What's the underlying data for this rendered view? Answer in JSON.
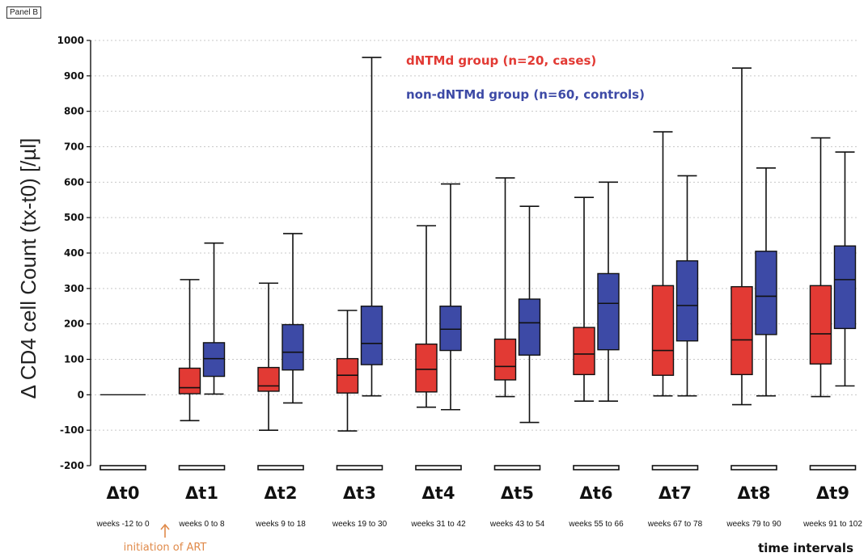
{
  "panel_label": "Panel B",
  "colors": {
    "cases": "#e23a34",
    "controls": "#3d4aa6",
    "annotation": "#e08a4a"
  },
  "chart_data": {
    "type": "boxplot",
    "title": "",
    "ylabel": "Δ CD4 cell Count (tx-t0) [/µl]",
    "xlabel": "time intervals",
    "ylim": [
      -200,
      1000
    ],
    "yticks": [
      -200,
      -100,
      0,
      100,
      200,
      300,
      400,
      500,
      600,
      700,
      800,
      900,
      1000
    ],
    "grid": "dotted horizontal",
    "legend": "top-center",
    "categories": [
      "Δt0",
      "Δt1",
      "Δt2",
      "Δt3",
      "Δt4",
      "Δt5",
      "Δt6",
      "Δt7",
      "Δt8",
      "Δt9"
    ],
    "subcategories": [
      "weeks -12 to 0",
      "weeks 0 to 8",
      "weeks 9 to 18",
      "weeks 19 to 30",
      "weeks 31 to 42",
      "weeks 43 to 54",
      "weeks 55 to 66",
      "weeks 67 to 78",
      "weeks 79 to 90",
      "weeks 91 to 102"
    ],
    "annotation": "initiation of ART",
    "series": [
      {
        "name": "dNTMd group (n=20, cases)",
        "color": "#e23a34",
        "boxes": [
          null,
          {
            "min": -73,
            "q1": 3,
            "median": 20,
            "q3": 75,
            "max": 325
          },
          {
            "min": -100,
            "q1": 10,
            "median": 25,
            "q3": 77,
            "max": 315
          },
          {
            "min": -102,
            "q1": 5,
            "median": 55,
            "q3": 102,
            "max": 238
          },
          {
            "min": -35,
            "q1": 8,
            "median": 72,
            "q3": 143,
            "max": 477
          },
          {
            "min": -5,
            "q1": 42,
            "median": 80,
            "q3": 157,
            "max": 612
          },
          {
            "min": -18,
            "q1": 57,
            "median": 115,
            "q3": 190,
            "max": 557
          },
          {
            "min": -3,
            "q1": 55,
            "median": 125,
            "q3": 308,
            "max": 742
          },
          {
            "min": -28,
            "q1": 57,
            "median": 155,
            "q3": 305,
            "max": 922
          },
          {
            "min": -5,
            "q1": 87,
            "median": 172,
            "q3": 308,
            "max": 725
          }
        ]
      },
      {
        "name": "non-dNTMd group (n=60, controls)",
        "color": "#3d4aa6",
        "boxes": [
          null,
          {
            "min": 2,
            "q1": 52,
            "median": 102,
            "q3": 147,
            "max": 428
          },
          {
            "min": -23,
            "q1": 70,
            "median": 120,
            "q3": 198,
            "max": 455
          },
          {
            "min": -3,
            "q1": 85,
            "median": 145,
            "q3": 250,
            "max": 952
          },
          {
            "min": -42,
            "q1": 125,
            "median": 185,
            "q3": 250,
            "max": 595
          },
          {
            "min": -78,
            "q1": 112,
            "median": 203,
            "q3": 270,
            "max": 532
          },
          {
            "min": -18,
            "q1": 127,
            "median": 258,
            "q3": 342,
            "max": 600
          },
          {
            "min": -3,
            "q1": 152,
            "median": 252,
            "q3": 378,
            "max": 618
          },
          {
            "min": -3,
            "q1": 170,
            "median": 278,
            "q3": 405,
            "max": 640
          },
          {
            "min": 25,
            "q1": 187,
            "median": 325,
            "q3": 420,
            "max": 685
          }
        ]
      }
    ],
    "baseline_value": 0
  }
}
